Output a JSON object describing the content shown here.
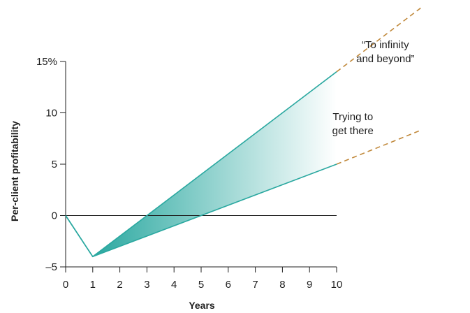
{
  "chart_data": {
    "type": "line",
    "title": "",
    "xlabel": "Years",
    "ylabel": "Per-client profitability",
    "xlim": [
      0,
      10
    ],
    "ylim": [
      -5,
      15
    ],
    "x_ticks": [
      0,
      1,
      2,
      3,
      4,
      5,
      6,
      7,
      8,
      9,
      10
    ],
    "x_tick_labels": [
      "0",
      "1",
      "2",
      "3",
      "4",
      "5",
      "6",
      "7",
      "8",
      "9",
      "10"
    ],
    "y_ticks": [
      -5,
      0,
      5,
      10,
      15
    ],
    "y_tick_labels": [
      "–5",
      "0",
      "5",
      "10",
      "15%"
    ],
    "grid": false,
    "baseline": 0,
    "series": [
      {
        "x": [
          0,
          1,
          10
        ],
        "values": [
          0,
          -4,
          14
        ],
        "color": "#2aa8a0",
        "style": "solid"
      },
      {
        "x": [
          0,
          1,
          10
        ],
        "values": [
          0,
          -4,
          5
        ],
        "color": "#2aa8a0",
        "style": "solid"
      },
      {
        "x": [
          10,
          13.1
        ],
        "values": [
          14,
          20.2
        ],
        "color": "#c0883a",
        "style": "dashed"
      },
      {
        "x": [
          10,
          13.1
        ],
        "values": [
          5,
          8.3
        ],
        "color": "#c0883a",
        "style": "dashed"
      }
    ],
    "shaded_region": {
      "x": [
        1,
        10
      ],
      "upper": [
        -4,
        14
      ],
      "lower": [
        -4,
        5
      ],
      "color_start": "#2aa8a0",
      "color_end": "#ffffff"
    },
    "annotations": [
      {
        "lines": [
          "“To infinity",
          "and beyond”"
        ],
        "anchor_x": 11.8,
        "anchor_y": 16.3
      },
      {
        "lines": [
          "Trying to",
          "get there"
        ],
        "anchor_x": 10.6,
        "anchor_y": 9.3
      }
    ]
  }
}
